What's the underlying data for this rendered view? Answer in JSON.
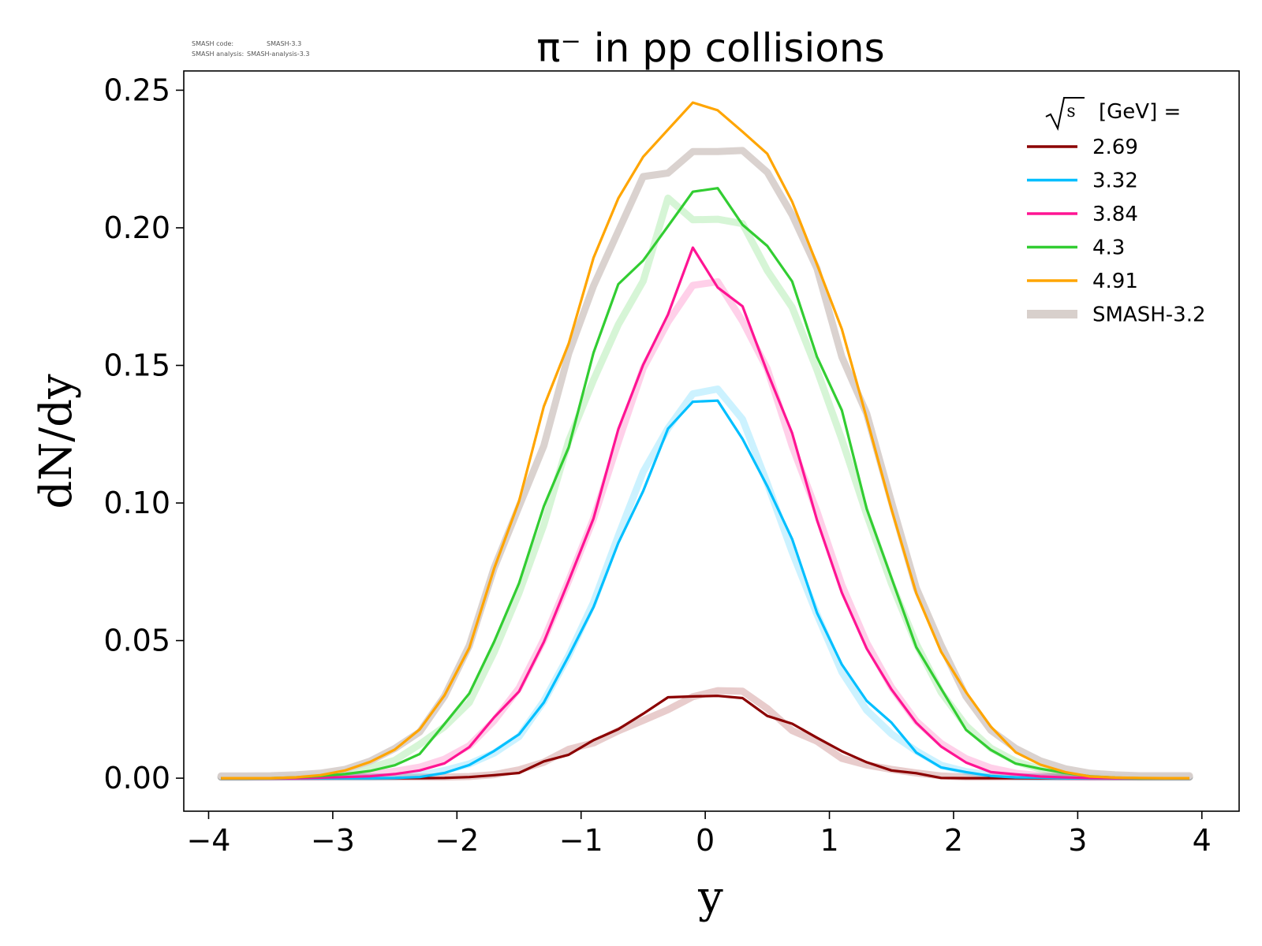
{
  "meta": {
    "line1_label": "SMASH code:",
    "line1_value": "SMASH-3.3",
    "line2_label": "SMASH analysis:",
    "line2_value": "SMASH-analysis-3.3"
  },
  "colors": {
    "2.69": "#8b0000",
    "3.32": "#00bfff",
    "3.84": "#ff1493",
    "4.3": "#32cd32",
    "4.91": "#ffa500",
    "reference": "#d8d0cc"
  },
  "chart_data": {
    "type": "line",
    "title": "π⁻ in pp collisions",
    "xlabel": "y",
    "ylabel": "dN/dy",
    "xlim": [
      -4.2,
      4.3
    ],
    "ylim": [
      -0.012,
      0.257
    ],
    "xticks": [
      "−4",
      "−3",
      "−2",
      "−1",
      "0",
      "1",
      "2",
      "3",
      "4"
    ],
    "xtick_values": [
      -4,
      -3,
      -2,
      -1,
      0,
      1,
      2,
      3,
      4
    ],
    "yticks": [
      "0.00",
      "0.05",
      "0.10",
      "0.15",
      "0.20",
      "0.25"
    ],
    "ytick_values": [
      0,
      0.05,
      0.1,
      0.15,
      0.2,
      0.25
    ],
    "grid": false,
    "legend": {
      "title_symbol": "s",
      "title_text": "[GeV] =",
      "placement": "top-right"
    },
    "x": [
      -3.9,
      -3.7,
      -3.5,
      -3.3,
      -3.1,
      -2.9,
      -2.7,
      -2.5,
      -2.3,
      -2.1,
      -1.9,
      -1.7,
      -1.5,
      -1.3,
      -1.1,
      -0.9,
      -0.7,
      -0.5,
      -0.3,
      -0.1,
      0.1,
      0.3,
      0.5,
      0.7,
      0.9,
      1.1,
      1.3,
      1.5,
      1.7,
      1.9,
      2.1,
      2.3,
      2.5,
      2.7,
      2.9,
      3.1,
      3.3,
      3.5,
      3.7,
      3.9
    ],
    "series": [
      {
        "name": "2.69",
        "values": [
          0,
          0,
          0,
          0,
          0,
          0,
          0,
          0,
          0,
          0.0001,
          0.0004,
          0.0011,
          0.0019,
          0.0061,
          0.0085,
          0.0138,
          0.0178,
          0.0234,
          0.0294,
          0.0297,
          0.0299,
          0.0291,
          0.0226,
          0.0198,
          0.0147,
          0.0098,
          0.0058,
          0.0028,
          0.0018,
          0.0001,
          0,
          0,
          0,
          0,
          0,
          0,
          0,
          0,
          0,
          0
        ],
        "reference": [
          0.0004,
          0.0004,
          0.0004,
          0.0004,
          0.0004,
          0.0004,
          0.0004,
          0.0004,
          0.0004,
          0.0004,
          0.0006,
          0.0013,
          0.003,
          0.0058,
          0.0105,
          0.0128,
          0.0172,
          0.021,
          0.0249,
          0.0296,
          0.0318,
          0.0316,
          0.0253,
          0.0173,
          0.0134,
          0.0072,
          0.0048,
          0.0032,
          0.0019,
          0.0008,
          0.0004,
          0.0004,
          0.0004,
          0.0004,
          0.0004,
          0.0004,
          0.0004,
          0.0004,
          0.0004,
          0.0004
        ]
      },
      {
        "name": "3.32",
        "values": [
          0,
          0,
          0,
          0,
          0,
          0,
          0,
          0.0001,
          0.0004,
          0.0019,
          0.0048,
          0.0099,
          0.0159,
          0.0275,
          0.0444,
          0.0622,
          0.0855,
          0.1043,
          0.127,
          0.1368,
          0.1372,
          0.1233,
          0.1061,
          0.0869,
          0.0601,
          0.0413,
          0.0281,
          0.0202,
          0.0093,
          0.0039,
          0.0022,
          0.0008,
          0.0003,
          0.0002,
          0,
          0,
          0,
          0,
          0,
          0
        ],
        "reference": [
          0.0004,
          0.0004,
          0.0004,
          0.0004,
          0.0004,
          0.0004,
          0.0004,
          0.0006,
          0.0011,
          0.0028,
          0.0052,
          0.0091,
          0.0151,
          0.028,
          0.0446,
          0.0639,
          0.0881,
          0.1113,
          0.1271,
          0.1397,
          0.1414,
          0.1304,
          0.1071,
          0.0822,
          0.0595,
          0.0386,
          0.0247,
          0.0161,
          0.0099,
          0.0047,
          0.0024,
          0.0012,
          0.0006,
          0.0004,
          0.0004,
          0.0004,
          0.0004,
          0.0004,
          0.0004,
          0.0004
        ]
      },
      {
        "name": "3.84",
        "values": [
          0,
          0,
          0,
          0,
          0.0002,
          0.0004,
          0.0007,
          0.0015,
          0.0028,
          0.0054,
          0.0113,
          0.0221,
          0.0315,
          0.0495,
          0.0717,
          0.0944,
          0.1268,
          0.1502,
          0.1685,
          0.1928,
          0.1783,
          0.1715,
          0.1476,
          0.1254,
          0.0938,
          0.0674,
          0.0471,
          0.0323,
          0.0201,
          0.0115,
          0.0057,
          0.0022,
          0.0014,
          0.0006,
          0.0003,
          0.0001,
          0,
          0,
          0,
          0
        ],
        "reference": [
          0.0004,
          0.0004,
          0.0004,
          0.0005,
          0.0006,
          0.0008,
          0.0014,
          0.0025,
          0.004,
          0.0069,
          0.0118,
          0.0209,
          0.0327,
          0.0504,
          0.0718,
          0.0943,
          0.1222,
          0.1489,
          0.1658,
          0.1791,
          0.1804,
          0.1661,
          0.1487,
          0.1207,
          0.0969,
          0.0702,
          0.0492,
          0.033,
          0.0207,
          0.0126,
          0.0071,
          0.0037,
          0.0018,
          0.0009,
          0.0006,
          0.0004,
          0.0004,
          0.0004,
          0.0004,
          0.0004
        ]
      },
      {
        "name": "4.3",
        "values": [
          0,
          0,
          0,
          0.0003,
          0.0008,
          0.0015,
          0.0026,
          0.0047,
          0.0088,
          0.0197,
          0.0308,
          0.0496,
          0.0708,
          0.0988,
          0.1202,
          0.1546,
          0.1795,
          0.1881,
          0.2006,
          0.2131,
          0.2144,
          0.2011,
          0.1934,
          0.1805,
          0.1531,
          0.1337,
          0.0979,
          0.0728,
          0.0476,
          0.0325,
          0.0176,
          0.0103,
          0.0053,
          0.0034,
          0.0019,
          0.0007,
          0.0002,
          0,
          0,
          0
        ],
        "reference": [
          0.0004,
          0.0004,
          0.0006,
          0.0008,
          0.0012,
          0.002,
          0.0038,
          0.0065,
          0.0123,
          0.0187,
          0.0275,
          0.0458,
          0.0673,
          0.0921,
          0.1226,
          0.1447,
          0.1648,
          0.1806,
          0.2108,
          0.2029,
          0.2031,
          0.2015,
          0.1845,
          0.1711,
          0.1483,
          0.1231,
          0.0958,
          0.0707,
          0.0488,
          0.0312,
          0.0191,
          0.0109,
          0.0061,
          0.0033,
          0.0017,
          0.0008,
          0.0006,
          0.0004,
          0.0004,
          0.0004
        ]
      },
      {
        "name": "4.91",
        "values": [
          0,
          0,
          0,
          0.0003,
          0.0011,
          0.0028,
          0.0059,
          0.0104,
          0.0177,
          0.0301,
          0.0474,
          0.0762,
          0.1006,
          0.1351,
          0.1579,
          0.1891,
          0.2107,
          0.2258,
          0.2357,
          0.2455,
          0.2427,
          0.2349,
          0.2269,
          0.2095,
          0.1867,
          0.1632,
          0.1308,
          0.0978,
          0.0672,
          0.0459,
          0.0313,
          0.0187,
          0.0094,
          0.0049,
          0.0022,
          0.0006,
          0.0002,
          0.0001,
          0,
          0
        ],
        "reference": [
          0.0008,
          0.0008,
          0.0009,
          0.0012,
          0.0018,
          0.0032,
          0.0062,
          0.0108,
          0.0168,
          0.0298,
          0.0482,
          0.0764,
          0.0987,
          0.1208,
          0.1543,
          0.1789,
          0.1988,
          0.2186,
          0.2199,
          0.2277,
          0.2277,
          0.2281,
          0.2202,
          0.2047,
          0.1852,
          0.1531,
          0.1325,
          0.1004,
          0.0691,
          0.0483,
          0.0297,
          0.0174,
          0.0108,
          0.0063,
          0.0034,
          0.0018,
          0.0012,
          0.0009,
          0.0009,
          0.0009
        ]
      }
    ],
    "reference_label": "SMASH-3.2"
  }
}
